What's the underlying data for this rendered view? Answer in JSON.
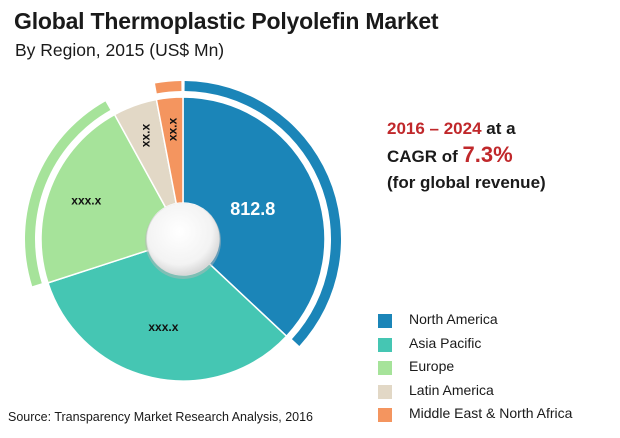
{
  "title": "Global Thermoplastic Polyolefin Market",
  "subtitle": "By Region, 2015 (US$ Mn)",
  "callout": {
    "line1_years": "2016 – 2024",
    "line1_rest": " at a",
    "line2_prefix": "CAGR of ",
    "line2_value": "7.3%",
    "line3": "(for global revenue)"
  },
  "source": "Source: Transparency Market Research Analysis, 2016",
  "chart_data": {
    "type": "pie",
    "title": "Global Thermoplastic Polyolefin Market",
    "subtitle": "By Region, 2015 (US$ Mn)",
    "categories": [
      "North America",
      "Asia Pacific",
      "Europe",
      "Latin America",
      "Middle East & North Africa"
    ],
    "shares_percent": [
      37,
      33,
      22,
      5,
      3
    ],
    "data_labels": [
      "812.8",
      "xxx.x",
      "xxx.x",
      "xx.x",
      "xx.x"
    ],
    "colors": [
      "#1b85b8",
      "#45c6b3",
      "#a6e39a",
      "#e2d8c6",
      "#f4955f"
    ],
    "legend_position": "bottom-right"
  }
}
